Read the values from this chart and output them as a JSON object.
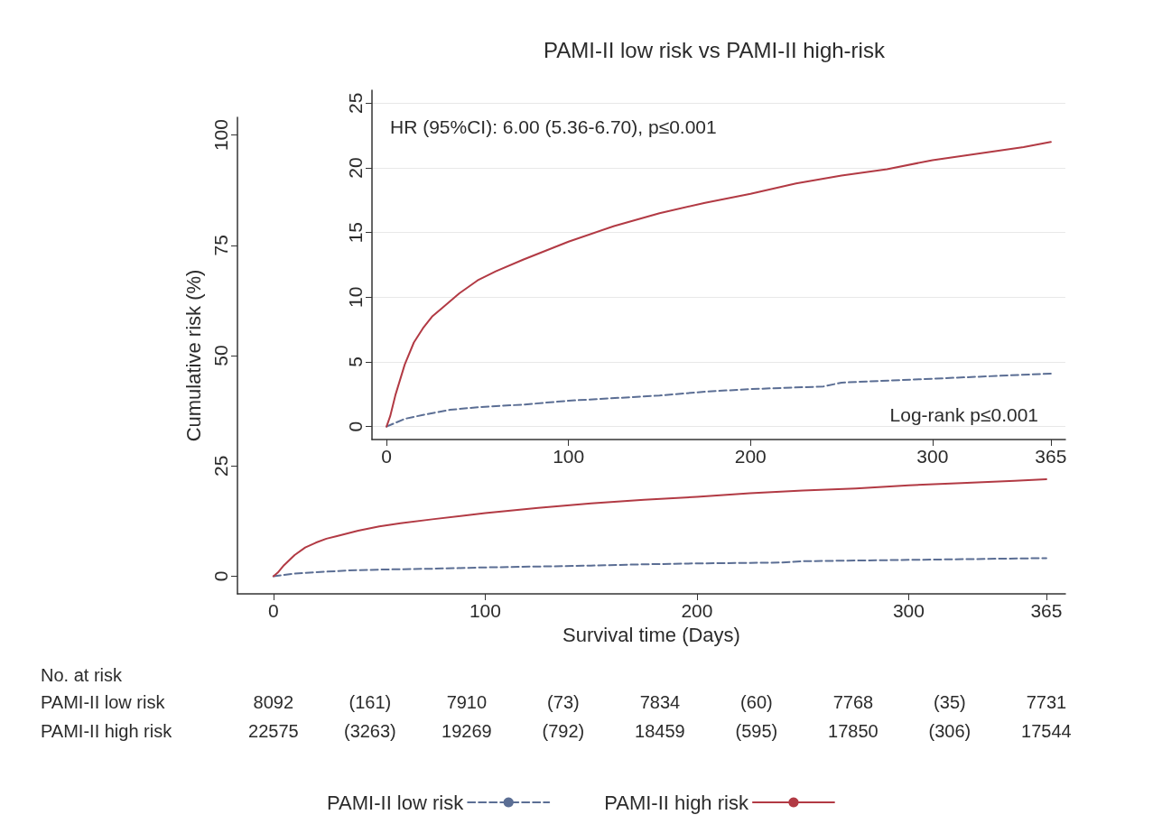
{
  "chart_data": [
    {
      "type": "line",
      "xlabel": "Survival time (Days)",
      "ylabel": "Cumulative risk (%)",
      "xlim": [
        -17,
        374
      ],
      "xticks": [
        0,
        100,
        200,
        300,
        365
      ],
      "ylim": [
        -4,
        104
      ],
      "yticks": [
        0,
        25,
        50,
        75,
        100
      ],
      "grid": false,
      "legend": "bottom",
      "marker": "none",
      "series": [
        {
          "name": "PAMI-II low risk",
          "color": "#5b6e94",
          "line_style": "dashed",
          "x": [
            0,
            5,
            10,
            20,
            35,
            50,
            75,
            100,
            150,
            175,
            200,
            240,
            250,
            300,
            365
          ],
          "values": [
            0,
            0.3,
            0.6,
            0.9,
            1.3,
            1.5,
            1.7,
            2.0,
            2.4,
            2.7,
            2.9,
            3.1,
            3.4,
            3.7,
            4.1
          ]
        },
        {
          "name": "PAMI-II high risk",
          "color": "#b23a44",
          "line_style": "solid",
          "x": [
            0,
            2,
            5,
            10,
            15,
            20,
            25,
            30,
            40,
            50,
            60,
            75,
            100,
            125,
            150,
            175,
            200,
            225,
            250,
            275,
            300,
            325,
            350,
            365
          ],
          "values": [
            0,
            0.8,
            2.5,
            4.8,
            6.5,
            7.6,
            8.5,
            9.1,
            10.3,
            11.3,
            12.0,
            12.9,
            14.3,
            15.5,
            16.5,
            17.3,
            18.0,
            18.8,
            19.4,
            19.9,
            20.6,
            21.1,
            21.6,
            22.0
          ]
        }
      ],
      "annotations": [
        "No. at risk",
        "PAMI-II low risk",
        "8092",
        "(161)",
        "7910",
        "(73)",
        "7834",
        "(60)",
        "7768",
        "(35)",
        "7731",
        "PAMI-II high risk",
        "22575",
        "(3263)",
        "19269",
        "(792)",
        "18459",
        "(595)",
        "17850",
        "(306)",
        "17544"
      ]
    },
    {
      "type": "line",
      "title": "PAMI-II low risk vs PAMI-II high-risk",
      "xlim": [
        -8,
        373
      ],
      "xticks": [
        0,
        100,
        200,
        300,
        365
      ],
      "ylim": [
        -1,
        26
      ],
      "yticks": [
        0,
        5,
        10,
        15,
        20,
        25
      ],
      "grid": "y",
      "marker": "none",
      "series": [
        {
          "color": "#5b6e94",
          "line_style": "dashed",
          "x": [
            0,
            5,
            10,
            20,
            35,
            50,
            75,
            100,
            150,
            175,
            200,
            240,
            250,
            300,
            365
          ],
          "values": [
            0,
            0.3,
            0.6,
            0.9,
            1.3,
            1.5,
            1.7,
            2.0,
            2.4,
            2.7,
            2.9,
            3.1,
            3.4,
            3.7,
            4.1
          ]
        },
        {
          "color": "#b23a44",
          "line_style": "solid",
          "x": [
            0,
            2,
            5,
            10,
            15,
            20,
            25,
            30,
            40,
            50,
            60,
            75,
            100,
            125,
            150,
            175,
            200,
            225,
            250,
            275,
            300,
            325,
            350,
            365
          ],
          "values": [
            0,
            0.8,
            2.5,
            4.8,
            6.5,
            7.6,
            8.5,
            9.1,
            10.3,
            11.3,
            12.0,
            12.9,
            14.3,
            15.5,
            16.5,
            17.3,
            18.0,
            18.8,
            19.4,
            19.9,
            20.6,
            21.1,
            21.6,
            22.0
          ]
        }
      ],
      "annotations": [
        "HR (95%CI): 6.00 (5.36-6.70), p≤0.001",
        "Log-rank p≤0.001"
      ]
    }
  ]
}
